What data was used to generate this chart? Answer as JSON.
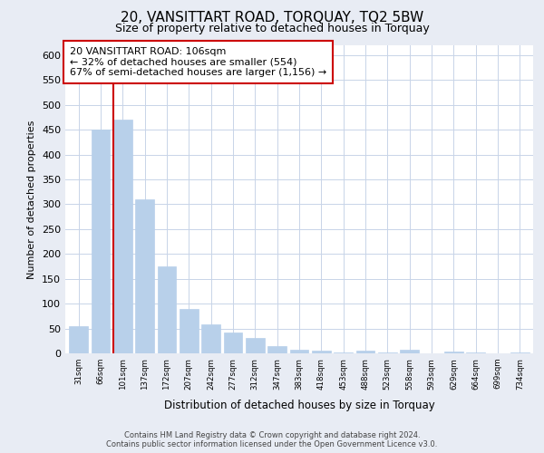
{
  "title": "20, VANSITTART ROAD, TORQUAY, TQ2 5BW",
  "subtitle": "Size of property relative to detached houses in Torquay",
  "xlabel": "Distribution of detached houses by size in Torquay",
  "ylabel": "Number of detached properties",
  "bar_labels": [
    "31sqm",
    "66sqm",
    "101sqm",
    "137sqm",
    "172sqm",
    "207sqm",
    "242sqm",
    "277sqm",
    "312sqm",
    "347sqm",
    "383sqm",
    "418sqm",
    "453sqm",
    "488sqm",
    "523sqm",
    "558sqm",
    "593sqm",
    "629sqm",
    "664sqm",
    "699sqm",
    "734sqm"
  ],
  "bar_values": [
    55,
    450,
    470,
    310,
    175,
    90,
    58,
    42,
    31,
    15,
    7,
    5,
    1,
    6,
    1,
    8,
    0,
    3,
    1,
    0,
    2
  ],
  "bar_color": "#b8d0ea",
  "vline_color": "#cc0000",
  "vline_bar_index": 2,
  "box_text_line1": "20 VANSITTART ROAD: 106sqm",
  "box_text_line2": "← 32% of detached houses are smaller (554)",
  "box_text_line3": "67% of semi-detached houses are larger (1,156) →",
  "box_edge_color": "#cc0000",
  "box_fill": "#ffffff",
  "ylim": [
    0,
    620
  ],
  "yticks": [
    0,
    50,
    100,
    150,
    200,
    250,
    300,
    350,
    400,
    450,
    500,
    550,
    600
  ],
  "footer_line1": "Contains HM Land Registry data © Crown copyright and database right 2024.",
  "footer_line2": "Contains public sector information licensed under the Open Government Licence v3.0.",
  "background_color": "#e8ecf4",
  "plot_bg_color": "#ffffff",
  "grid_color": "#c8d4e8"
}
